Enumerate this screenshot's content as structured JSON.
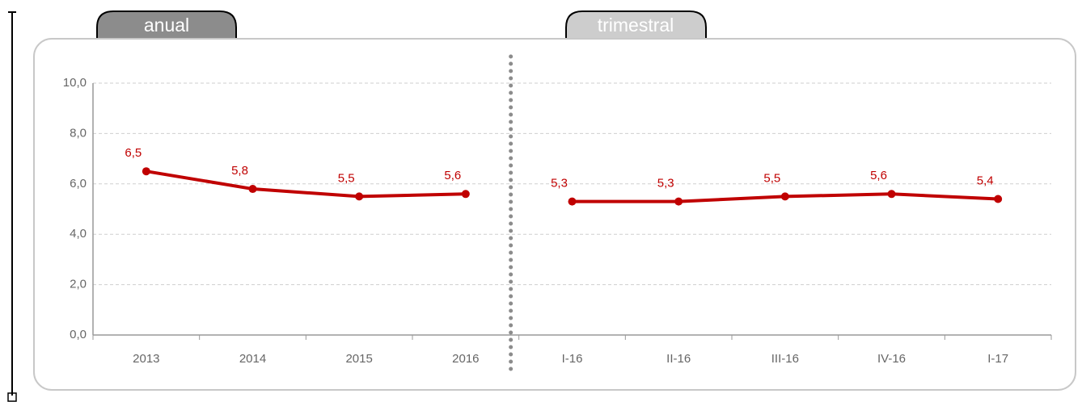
{
  "chart_data": {
    "type": "line",
    "color": "#c00000",
    "grid": true,
    "ylim": [
      0,
      10
    ],
    "yticks": [
      {
        "value": 0,
        "label": "0,0"
      },
      {
        "value": 2,
        "label": "2,0"
      },
      {
        "value": 4,
        "label": "4,0"
      },
      {
        "value": 6,
        "label": "6,0"
      },
      {
        "value": 8,
        "label": "8,0"
      },
      {
        "value": 10,
        "label": "10,0"
      }
    ],
    "groups": [
      {
        "name": "anual",
        "categories": [
          "2013",
          "2014",
          "2015",
          "2016"
        ],
        "values": [
          6.5,
          5.8,
          5.5,
          5.6
        ],
        "value_labels": [
          "6,5",
          "5,8",
          "5,5",
          "5,6"
        ]
      },
      {
        "name": "trimestral",
        "categories": [
          "I-16",
          "II-16",
          "III-16",
          "IV-16",
          "I-17"
        ],
        "values": [
          5.3,
          5.3,
          5.5,
          5.6,
          5.4
        ],
        "value_labels": [
          "5,3",
          "5,3",
          "5,5",
          "5,6",
          "5,4"
        ]
      }
    ]
  }
}
